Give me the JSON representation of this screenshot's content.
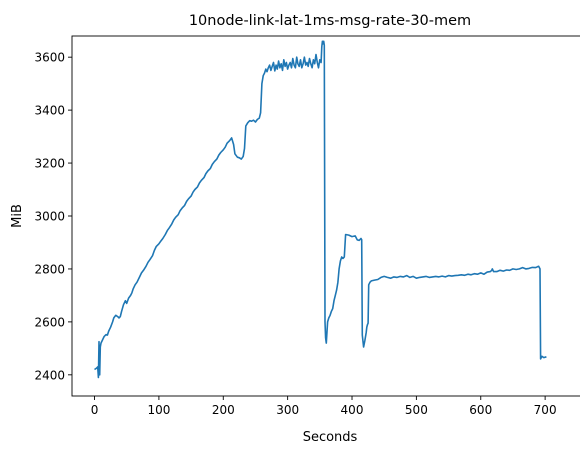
{
  "chart_data": {
    "type": "line",
    "title": "10node-link-lat-1ms-msg-rate-30-mem",
    "xlabel": "Seconds",
    "ylabel": "MiB",
    "xlim": [
      -35,
      720
    ],
    "ylim": [
      2320,
      3680
    ],
    "xticks": [
      0,
      100,
      200,
      300,
      400,
      500,
      600,
      700
    ],
    "yticks": [
      2400,
      2600,
      2800,
      3000,
      3200,
      3400,
      3600
    ],
    "grid": false,
    "legend": "none",
    "line_color": "#1f77b4",
    "series": [
      {
        "points": [
          [
            0,
            2420
          ],
          [
            3,
            2425
          ],
          [
            5,
            2430
          ],
          [
            6,
            2390
          ],
          [
            7,
            2525
          ],
          [
            8,
            2400
          ],
          [
            9,
            2505
          ],
          [
            10,
            2520
          ],
          [
            12,
            2530
          ],
          [
            15,
            2545
          ],
          [
            18,
            2552
          ],
          [
            20,
            2550
          ],
          [
            22,
            2565
          ],
          [
            25,
            2580
          ],
          [
            28,
            2600
          ],
          [
            30,
            2615
          ],
          [
            33,
            2625
          ],
          [
            36,
            2620
          ],
          [
            38,
            2615
          ],
          [
            40,
            2620
          ],
          [
            42,
            2640
          ],
          [
            45,
            2665
          ],
          [
            48,
            2680
          ],
          [
            50,
            2670
          ],
          [
            53,
            2690
          ],
          [
            56,
            2700
          ],
          [
            58,
            2710
          ],
          [
            60,
            2725
          ],
          [
            63,
            2740
          ],
          [
            66,
            2750
          ],
          [
            70,
            2770
          ],
          [
            73,
            2785
          ],
          [
            76,
            2795
          ],
          [
            80,
            2810
          ],
          [
            83,
            2825
          ],
          [
            86,
            2835
          ],
          [
            90,
            2850
          ],
          [
            93,
            2870
          ],
          [
            96,
            2885
          ],
          [
            100,
            2895
          ],
          [
            103,
            2905
          ],
          [
            106,
            2915
          ],
          [
            110,
            2930
          ],
          [
            113,
            2945
          ],
          [
            116,
            2955
          ],
          [
            120,
            2970
          ],
          [
            123,
            2985
          ],
          [
            126,
            2995
          ],
          [
            130,
            3005
          ],
          [
            133,
            3020
          ],
          [
            136,
            3030
          ],
          [
            140,
            3040
          ],
          [
            143,
            3055
          ],
          [
            146,
            3065
          ],
          [
            150,
            3075
          ],
          [
            153,
            3090
          ],
          [
            156,
            3100
          ],
          [
            160,
            3110
          ],
          [
            163,
            3125
          ],
          [
            166,
            3135
          ],
          [
            170,
            3145
          ],
          [
            173,
            3160
          ],
          [
            176,
            3170
          ],
          [
            180,
            3180
          ],
          [
            183,
            3195
          ],
          [
            186,
            3205
          ],
          [
            190,
            3215
          ],
          [
            193,
            3230
          ],
          [
            196,
            3240
          ],
          [
            200,
            3250
          ],
          [
            203,
            3260
          ],
          [
            206,
            3275
          ],
          [
            210,
            3285
          ],
          [
            213,
            3295
          ],
          [
            216,
            3270
          ],
          [
            218,
            3235
          ],
          [
            222,
            3222
          ],
          [
            225,
            3220
          ],
          [
            228,
            3215
          ],
          [
            231,
            3225
          ],
          [
            233,
            3255
          ],
          [
            235,
            3340
          ],
          [
            238,
            3352
          ],
          [
            241,
            3360
          ],
          [
            244,
            3358
          ],
          [
            247,
            3362
          ],
          [
            250,
            3355
          ],
          [
            253,
            3365
          ],
          [
            256,
            3370
          ],
          [
            258,
            3390
          ],
          [
            260,
            3500
          ],
          [
            262,
            3530
          ],
          [
            264,
            3540
          ],
          [
            266,
            3555
          ],
          [
            268,
            3545
          ],
          [
            270,
            3560
          ],
          [
            272,
            3570
          ],
          [
            274,
            3550
          ],
          [
            276,
            3565
          ],
          [
            278,
            3580
          ],
          [
            280,
            3548
          ],
          [
            282,
            3570
          ],
          [
            284,
            3555
          ],
          [
            286,
            3585
          ],
          [
            288,
            3560
          ],
          [
            290,
            3575
          ],
          [
            292,
            3550
          ],
          [
            294,
            3590
          ],
          [
            296,
            3565
          ],
          [
            298,
            3580
          ],
          [
            300,
            3555
          ],
          [
            302,
            3570
          ],
          [
            304,
            3580
          ],
          [
            306,
            3560
          ],
          [
            308,
            3595
          ],
          [
            310,
            3570
          ],
          [
            312,
            3560
          ],
          [
            314,
            3600
          ],
          [
            316,
            3575
          ],
          [
            318,
            3565
          ],
          [
            320,
            3590
          ],
          [
            322,
            3560
          ],
          [
            324,
            3575
          ],
          [
            326,
            3600
          ],
          [
            328,
            3570
          ],
          [
            330,
            3580
          ],
          [
            332,
            3565
          ],
          [
            334,
            3595
          ],
          [
            336,
            3575
          ],
          [
            338,
            3560
          ],
          [
            340,
            3590
          ],
          [
            342,
            3575
          ],
          [
            344,
            3610
          ],
          [
            346,
            3580
          ],
          [
            348,
            3560
          ],
          [
            350,
            3590
          ],
          [
            352,
            3580
          ],
          [
            353,
            3640
          ],
          [
            354,
            3660
          ],
          [
            355,
            3650
          ],
          [
            356,
            3660
          ],
          [
            357,
            3645
          ],
          [
            358,
            2600
          ],
          [
            359,
            2540
          ],
          [
            360,
            2520
          ],
          [
            362,
            2600
          ],
          [
            364,
            2615
          ],
          [
            366,
            2625
          ],
          [
            368,
            2640
          ],
          [
            370,
            2650
          ],
          [
            372,
            2680
          ],
          [
            374,
            2700
          ],
          [
            376,
            2720
          ],
          [
            378,
            2750
          ],
          [
            380,
            2800
          ],
          [
            382,
            2830
          ],
          [
            384,
            2845
          ],
          [
            386,
            2840
          ],
          [
            388,
            2845
          ],
          [
            390,
            2930
          ],
          [
            395,
            2928
          ],
          [
            400,
            2922
          ],
          [
            405,
            2925
          ],
          [
            408,
            2910
          ],
          [
            411,
            2908
          ],
          [
            414,
            2915
          ],
          [
            415,
            2910
          ],
          [
            416,
            2550
          ],
          [
            418,
            2505
          ],
          [
            420,
            2530
          ],
          [
            422,
            2560
          ],
          [
            423,
            2580
          ],
          [
            424,
            2590
          ],
          [
            425,
            2595
          ],
          [
            426,
            2740
          ],
          [
            428,
            2750
          ],
          [
            430,
            2755
          ],
          [
            435,
            2758
          ],
          [
            440,
            2760
          ],
          [
            445,
            2768
          ],
          [
            450,
            2772
          ],
          [
            455,
            2768
          ],
          [
            460,
            2765
          ],
          [
            465,
            2770
          ],
          [
            470,
            2768
          ],
          [
            475,
            2772
          ],
          [
            480,
            2770
          ],
          [
            485,
            2775
          ],
          [
            490,
            2768
          ],
          [
            495,
            2772
          ],
          [
            500,
            2765
          ],
          [
            505,
            2768
          ],
          [
            510,
            2770
          ],
          [
            515,
            2772
          ],
          [
            520,
            2768
          ],
          [
            525,
            2770
          ],
          [
            530,
            2772
          ],
          [
            535,
            2770
          ],
          [
            540,
            2773
          ],
          [
            545,
            2770
          ],
          [
            550,
            2775
          ],
          [
            555,
            2773
          ],
          [
            560,
            2775
          ],
          [
            565,
            2776
          ],
          [
            570,
            2778
          ],
          [
            575,
            2776
          ],
          [
            580,
            2780
          ],
          [
            585,
            2778
          ],
          [
            590,
            2782
          ],
          [
            595,
            2780
          ],
          [
            600,
            2785
          ],
          [
            605,
            2780
          ],
          [
            610,
            2788
          ],
          [
            615,
            2790
          ],
          [
            617,
            2795
          ],
          [
            618,
            2800
          ],
          [
            620,
            2790
          ],
          [
            625,
            2790
          ],
          [
            630,
            2795
          ],
          [
            635,
            2792
          ],
          [
            640,
            2796
          ],
          [
            645,
            2795
          ],
          [
            650,
            2800
          ],
          [
            655,
            2798
          ],
          [
            660,
            2800
          ],
          [
            665,
            2805
          ],
          [
            670,
            2800
          ],
          [
            675,
            2802
          ],
          [
            680,
            2806
          ],
          [
            685,
            2805
          ],
          [
            688,
            2808
          ],
          [
            690,
            2810
          ],
          [
            692,
            2800
          ],
          [
            693,
            2460
          ],
          [
            695,
            2470
          ],
          [
            698,
            2465
          ],
          [
            702,
            2468
          ]
        ]
      }
    ]
  }
}
